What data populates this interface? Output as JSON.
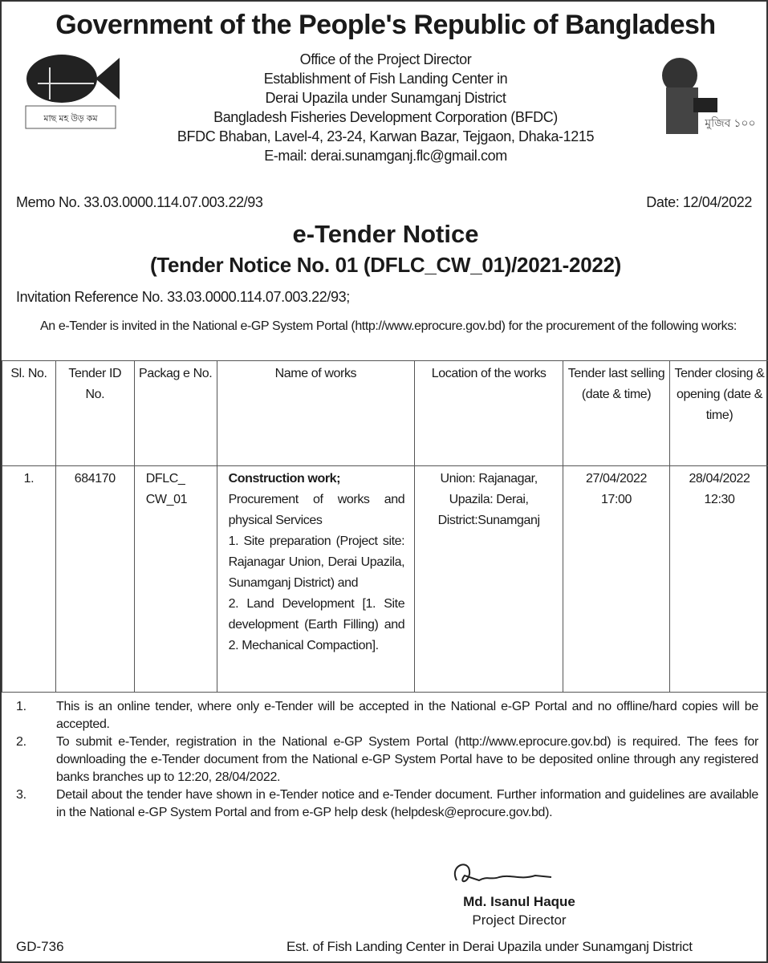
{
  "title": "Government of the People's Republic of Bangladesh",
  "header": {
    "lines": [
      "Office of the Project Director",
      "Establishment of Fish Landing Center in",
      "Derai Upazila under Sunamganj District",
      "Bangladesh Fisheries Development Corporation (BFDC)",
      "BFDC Bhaban, Lavel-4, 23-24, Karwan Bazar, Tejgaon, Dhaka-1215"
    ],
    "email_label": "E-mail: ",
    "email": "derai.sunamganj.flc@gmail.com",
    "left_logo_caption": "মাছ মহ উড় কম",
    "right_logo_text": "মুজিব ১০০"
  },
  "memo": "Memo No. 33.03.0000.114.07.003.22/93",
  "date": "Date: 12/04/2022",
  "notice_title": "e-Tender Notice",
  "notice_subtitle": "(Tender Notice No. 01 (DFLC_CW_01)/2021-2022)",
  "invitation_ref": "Invitation Reference No. 33.03.0000.114.07.003.22/93;",
  "intro": {
    "before": "An e-Tender is invited in the National e-GP System Portal (",
    "link": "http://www.eprocure.gov.bd",
    "after": ") for the procurement of the following works:"
  },
  "table": {
    "headers": [
      "Sl. No.",
      "Tender ID No.",
      "Packag e No.",
      "Name of works",
      "Location of the works",
      "Tender last selling (date & time)",
      "Tender closing & opening (date & time)"
    ],
    "row": {
      "sl": "1.",
      "tender_id": "684170",
      "package": "DFLC_ CW_01",
      "works_bold": "Construction work;",
      "works_lines": [
        "Procurement of works and physical Services",
        "1. Site preparation (Project site: Rajanagar Union, Derai Upazila, Sunamganj District) and",
        "2. Land Development [1. Site development (Earth Filling) and 2. Mechanical Compaction]."
      ],
      "location": "Union: Rajanagar, Upazila: Derai, District:Sunamganj",
      "last_selling": "27/04/2022 17:00",
      "closing": "28/04/2022 12:30"
    }
  },
  "notes": [
    {
      "n": "1.",
      "text": "This is an online tender, where only e-Tender will be accepted in the National e-GP Portal and no offline/hard copies will be accepted."
    },
    {
      "n": "2.",
      "text": "To submit e-Tender, registration in the National e-GP System Portal (http://www.eprocure.gov.bd) is required. The fees for downloading the e-Tender document from the National e-GP System Portal have to be deposited online through any registered banks branches up to 12:20, 28/04/2022."
    },
    {
      "n": "3.",
      "text": "Detail about the tender have shown in e-Tender notice and e-Tender document. Further information and guidelines are available in the National e-GP System Portal and from e-GP help desk (helpdesk@eprocure.gov.bd)."
    }
  ],
  "signatory": {
    "name": "Md. Isanul Haque",
    "role": "Project Director"
  },
  "gd": "GD-736",
  "footer": "Est. of Fish Landing Center in Derai Upazila under Sunamganj District"
}
